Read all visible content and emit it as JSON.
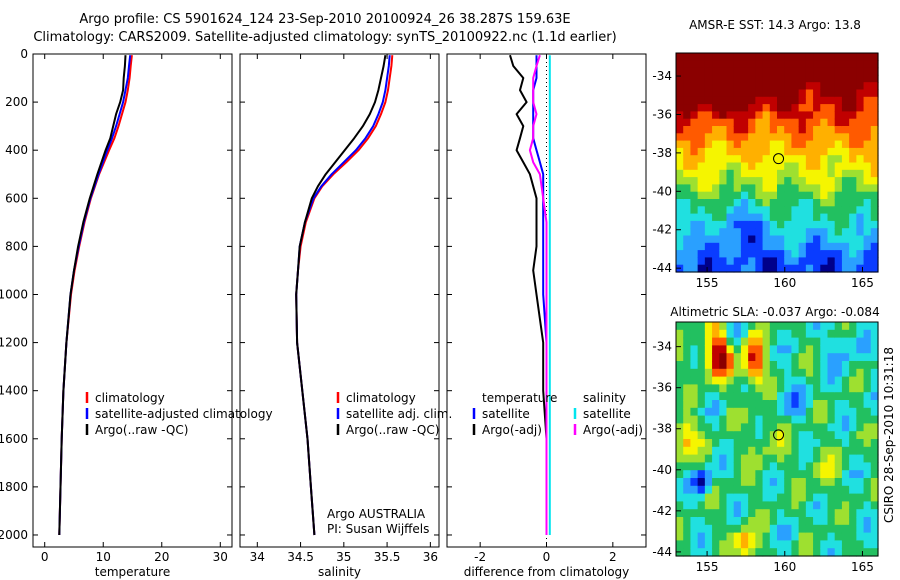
{
  "header": {
    "line1": "Argo profile: CS 5901624_124 23-Sep-2010 20100924_26 38.287S 159.63E",
    "line2": "Climatology: CARS2009. Satellite-adjusted climatology: synTS_20100922.nc (1.1d earlier)"
  },
  "side_label": "CSIRO 28-Sep-2010 10:31:18",
  "colors": {
    "climatology": "#ff0000",
    "satellite": "#0000ff",
    "argo": "#000000",
    "satellite_sal": "#00e5ee",
    "argo_sal": "#ff00ff"
  },
  "chart_data": [
    {
      "type": "line",
      "panel": "temperature",
      "xlabel": "temperature",
      "xlim": [
        -2,
        32
      ],
      "ylim": [
        2050,
        0
      ],
      "xticks": [
        0,
        10,
        20,
        30
      ],
      "yticks": [
        0,
        200,
        400,
        600,
        800,
        1000,
        1200,
        1400,
        1600,
        1800,
        2000
      ],
      "legend": [
        "climatology",
        "satellite-adjusted climatology",
        "Argo(..raw -QC)"
      ],
      "depth": [
        5,
        50,
        100,
        150,
        200,
        250,
        300,
        350,
        400,
        500,
        600,
        700,
        800,
        900,
        1000,
        1200,
        1400,
        1600,
        1800,
        2000
      ],
      "series": [
        {
          "name": "climatology",
          "color": "#ff0000",
          "values": [
            14.9,
            14.7,
            14.5,
            14.2,
            13.8,
            13.2,
            12.6,
            11.9,
            11.0,
            9.3,
            7.9,
            6.8,
            5.9,
            5.1,
            4.5,
            3.7,
            3.2,
            2.9,
            2.7,
            2.5
          ]
        },
        {
          "name": "satellite-adjusted climatology",
          "color": "#0000ff",
          "values": [
            14.6,
            14.4,
            14.2,
            13.8,
            13.4,
            12.8,
            12.2,
            11.5,
            10.7,
            9.2,
            7.8,
            6.7,
            5.8,
            5.0,
            4.4,
            3.7,
            3.2,
            2.9,
            2.7,
            2.5
          ]
        },
        {
          "name": "Argo(..raw -QC)",
          "color": "#000000",
          "values": [
            13.8,
            13.7,
            13.5,
            13.4,
            12.9,
            12.2,
            11.7,
            11.2,
            10.4,
            9.0,
            7.7,
            6.6,
            5.7,
            5.0,
            4.4,
            3.7,
            3.2,
            2.9,
            2.7,
            2.5
          ]
        }
      ]
    },
    {
      "type": "line",
      "panel": "salinity",
      "xlabel": "salinity",
      "xlim": [
        33.8,
        36.1
      ],
      "ylim": [
        2050,
        0
      ],
      "xticks": [
        34,
        34.5,
        35,
        35.5,
        36
      ],
      "legend": [
        "climatology",
        "satellite adj. clim.",
        "Argo(..raw -QC)"
      ],
      "annotation": [
        "Argo AUSTRALIA",
        "PI: Susan Wijffels"
      ],
      "depth": [
        5,
        50,
        100,
        150,
        200,
        250,
        300,
        350,
        400,
        450,
        500,
        550,
        600,
        700,
        800,
        900,
        1000,
        1200,
        1400,
        1600,
        1800,
        2000
      ],
      "series": [
        {
          "name": "climatology",
          "color": "#ff0000",
          "values": [
            35.56,
            35.55,
            35.53,
            35.51,
            35.48,
            35.43,
            35.37,
            35.28,
            35.17,
            35.03,
            34.88,
            34.75,
            34.66,
            34.56,
            34.5,
            34.47,
            34.45,
            34.46,
            34.52,
            34.58,
            34.62,
            34.66
          ]
        },
        {
          "name": "satellite adj. clim.",
          "color": "#0000ff",
          "values": [
            35.53,
            35.52,
            35.5,
            35.48,
            35.45,
            35.4,
            35.34,
            35.25,
            35.14,
            35.0,
            34.86,
            34.74,
            34.65,
            34.55,
            34.49,
            34.47,
            34.45,
            34.46,
            34.52,
            34.58,
            34.62,
            34.66
          ]
        },
        {
          "name": "Argo(..raw -QC)",
          "color": "#000000",
          "values": [
            35.48,
            35.46,
            35.43,
            35.4,
            35.36,
            35.3,
            35.22,
            35.12,
            35.01,
            34.9,
            34.79,
            34.7,
            34.63,
            34.55,
            34.49,
            34.47,
            34.45,
            34.46,
            34.52,
            34.58,
            34.62,
            34.66
          ]
        }
      ]
    },
    {
      "type": "line",
      "panel": "difference",
      "xlabel": "difference from climatology",
      "xlim": [
        -3,
        3
      ],
      "ylim": [
        2050,
        0
      ],
      "xticks": [
        -2,
        0,
        2
      ],
      "legend_left_title": "temperature",
      "legend_left": [
        "satellite",
        "Argo(-adj)"
      ],
      "legend_right_title": "salinity",
      "legend_right": [
        "satellite",
        "Argo(-adj)"
      ],
      "depth": [
        5,
        50,
        100,
        150,
        200,
        250,
        300,
        350,
        400,
        450,
        500,
        600,
        700,
        800,
        900,
        1000,
        1200,
        1400,
        1600,
        1800,
        2000
      ],
      "series": [
        {
          "name": "temperature satellite",
          "color": "#0000ff",
          "values": [
            -0.3,
            -0.3,
            -0.3,
            -0.4,
            -0.4,
            -0.4,
            -0.4,
            -0.4,
            -0.3,
            -0.2,
            -0.1,
            -0.1,
            -0.1,
            -0.1,
            -0.1,
            -0.1,
            0.0,
            0.0,
            0.0,
            0.0,
            0.0
          ]
        },
        {
          "name": "temperature Argo(-adj)",
          "color": "#000000",
          "values": [
            -1.1,
            -1.0,
            -0.7,
            -0.8,
            -0.6,
            -0.9,
            -0.7,
            -0.8,
            -0.9,
            -0.7,
            -0.5,
            -0.3,
            -0.3,
            -0.3,
            -0.4,
            -0.3,
            -0.1,
            -0.1,
            0.0,
            0.0,
            0.0
          ]
        },
        {
          "name": "salinity satellite",
          "color": "#00e5ee",
          "values": [
            0.1,
            0.1,
            0.1,
            0.1,
            0.1,
            0.1,
            0.1,
            0.1,
            0.1,
            0.1,
            0.1,
            0.1,
            0.1,
            0.1,
            0.1,
            0.1,
            0.1,
            0.1,
            0.1,
            0.1,
            0.1
          ]
        },
        {
          "name": "salinity Argo(-adj)",
          "color": "#ff00ff",
          "values": [
            -0.2,
            -0.3,
            -0.4,
            -0.4,
            -0.4,
            -0.3,
            -0.4,
            -0.4,
            -0.5,
            -0.4,
            -0.2,
            -0.1,
            0.0,
            0.0,
            0.0,
            0.0,
            0.0,
            0.0,
            0.0,
            0.0,
            0.0
          ]
        }
      ]
    },
    {
      "type": "heatmap",
      "panel": "sst-map",
      "title": "AMSR-E SST: 14.3 Argo: 13.8",
      "xlim": [
        153,
        166
      ],
      "ylim": [
        -44.2,
        -32.8
      ],
      "xticks": [
        155,
        160,
        165
      ],
      "yticks": [
        -34,
        -36,
        -38,
        -40,
        -42,
        -44
      ],
      "marker": [
        159.6,
        -38.3
      ],
      "colormap": [
        "#00008b",
        "#0a3cff",
        "#2aa0ff",
        "#20e0e0",
        "#22c060",
        "#9ee030",
        "#f5f500",
        "#ffb000",
        "#ff5a00",
        "#c00000",
        "#8b0000"
      ]
    },
    {
      "type": "heatmap",
      "panel": "sla-map",
      "title": "Altimetric SLA: -0.037 Argo: -0.084",
      "xlim": [
        153,
        166
      ],
      "ylim": [
        -44.2,
        -32.8
      ],
      "xticks": [
        155,
        160,
        165
      ],
      "yticks": [
        -34,
        -36,
        -38,
        -40,
        -42,
        -44
      ],
      "marker": [
        159.6,
        -38.3
      ],
      "colormap": [
        "#00008b",
        "#0a3cff",
        "#2aa0ff",
        "#20e0e0",
        "#22c060",
        "#9ee030",
        "#f5f500",
        "#ffb000",
        "#ff5a00",
        "#c00000",
        "#8b0000"
      ]
    }
  ]
}
